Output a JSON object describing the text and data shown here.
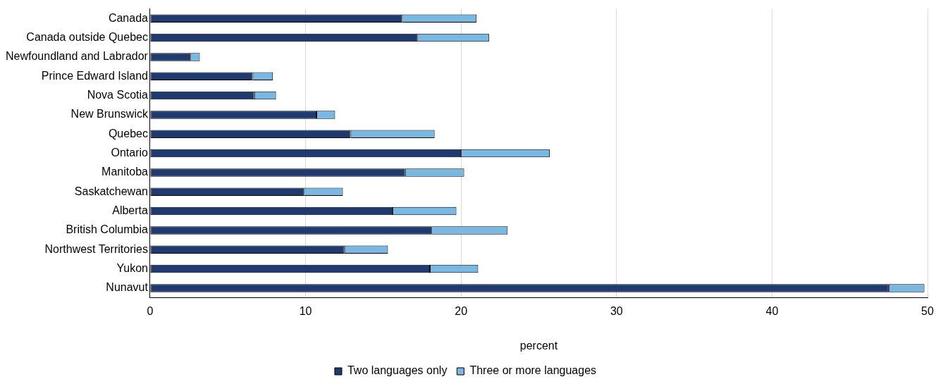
{
  "chart_data": {
    "type": "bar",
    "orientation": "horizontal",
    "stacked": true,
    "categories": [
      "Canada",
      "Canada outside Quebec",
      "Newfoundland and Labrador",
      "Prince Edward Island",
      "Nova Scotia",
      "New Brunswick",
      "Quebec",
      "Ontario",
      "Manitoba",
      "Saskatchewan",
      "Alberta",
      "British Columbia",
      "Northwest Territories",
      "Yukon",
      "Nunavut"
    ],
    "series": [
      {
        "name": "Two languages only",
        "color": "#1f3a6e",
        "values": [
          16.2,
          17.2,
          2.6,
          6.6,
          6.7,
          10.7,
          12.9,
          20.0,
          16.4,
          9.9,
          15.6,
          18.1,
          12.5,
          18.0,
          47.5
        ]
      },
      {
        "name": "Three or more languages",
        "color": "#7ab8e4",
        "values": [
          4.8,
          4.6,
          0.6,
          1.3,
          1.4,
          1.2,
          5.4,
          5.7,
          3.8,
          2.5,
          4.1,
          4.9,
          2.8,
          3.1,
          2.3
        ]
      }
    ],
    "xlabel": "percent",
    "xlim": [
      0,
      50
    ],
    "xticks": [
      0,
      10,
      20,
      30,
      40,
      50
    ],
    "grid": "x",
    "legend": "bottom"
  }
}
